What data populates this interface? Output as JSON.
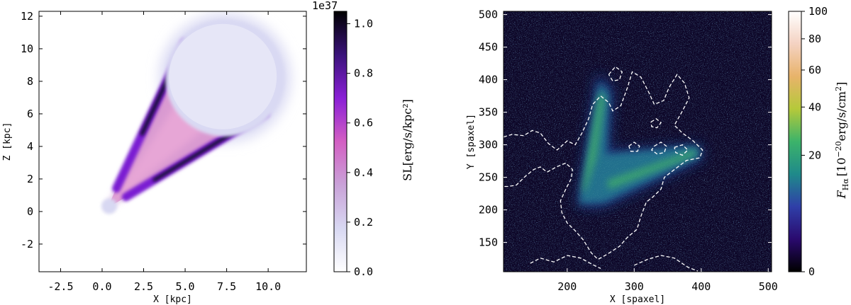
{
  "chart_data": [
    {
      "type": "heatmap",
      "title": "",
      "xlabel": "X [kpc]",
      "ylabel": "Z [kpc]",
      "xlim": [
        -3.8,
        12.3
      ],
      "ylim": [
        -3.7,
        12.3
      ],
      "xticks": [
        "-2.5",
        "0.0",
        "2.5",
        "5.0",
        "7.5",
        "10.0"
      ],
      "xtick_values": [
        -2.5,
        0,
        2.5,
        5,
        7.5,
        10
      ],
      "yticks": [
        "-2",
        "0",
        "2",
        "4",
        "6",
        "8",
        "10",
        "12"
      ],
      "ytick_values": [
        -2,
        0,
        2,
        4,
        6,
        8,
        10,
        12
      ],
      "description_shape": "cone",
      "cone": {
        "apex": [
          0.3,
          0.2
        ],
        "far_center": [
          7.4,
          8.2
        ],
        "far_radius": 3.5
      },
      "colorbar": {
        "label": "SL[erg/s/kpc²]",
        "offset_text": "1e37",
        "ticks": [
          "0.0",
          "0.2",
          "0.4",
          "0.6",
          "0.8",
          "1.0"
        ],
        "tick_values": [
          0,
          0.2,
          0.4,
          0.6,
          0.8,
          1.0
        ],
        "range": [
          0,
          1.05
        ],
        "colormap": [
          "#ffffff",
          "#d8d8f2",
          "#c9a2d8",
          "#d35fc3",
          "#8a1fd6",
          "#3a137a",
          "#000000"
        ]
      }
    },
    {
      "type": "heatmap",
      "title": "",
      "xlabel": "X [spaxel]",
      "ylabel": "Y [spaxel]",
      "xlim": [
        105,
        505
      ],
      "ylim": [
        105,
        505
      ],
      "xticks": [
        "200",
        "300",
        "400",
        "500"
      ],
      "xtick_values": [
        200,
        300,
        400,
        500
      ],
      "yticks": [
        "150",
        "200",
        "250",
        "300",
        "350",
        "400",
        "450",
        "500"
      ],
      "ytick_values": [
        150,
        200,
        250,
        300,
        350,
        400,
        450,
        500
      ],
      "contours": "white dashed",
      "colorbar": {
        "label": "F_Hα [10⁻²⁰erg/s/cm²]",
        "label_main": "F",
        "label_sub": "Hα",
        "label_unit": "[10",
        "label_exp": "−20",
        "label_rest": "erg/s/cm",
        "label_sq": "2",
        "label_close": "]",
        "ticks": [
          "0",
          "20",
          "40",
          "60",
          "80",
          "100"
        ],
        "tick_values": [
          0,
          20,
          40,
          60,
          80,
          100
        ],
        "scale": "sqrt",
        "colormap": [
          "#000000",
          "#2a0a6e",
          "#2f3fa8",
          "#1f8a8a",
          "#3cb36a",
          "#b5c93a",
          "#e8b36a",
          "#f4d2c2",
          "#ffffff"
        ]
      }
    }
  ]
}
